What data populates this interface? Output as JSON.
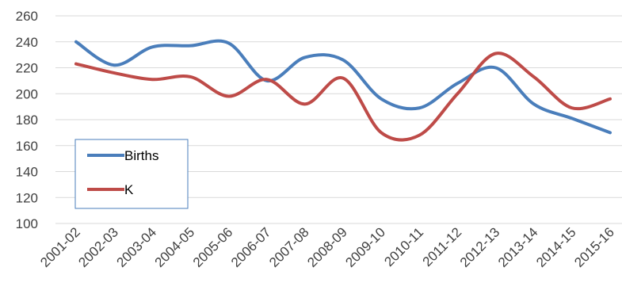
{
  "chart_data": {
    "type": "line",
    "title": "",
    "xlabel": "",
    "ylabel": "",
    "categories": [
      "2001-02",
      "2002-03",
      "2003-04",
      "2004-05",
      "2005-06",
      "2006-07",
      "2007-08",
      "2008-09",
      "2009-10",
      "2010-11",
      "2011-12",
      "2012-13",
      "2013-14",
      "2014-15",
      "2015-16"
    ],
    "ylim": [
      100,
      260
    ],
    "yticks": [
      100,
      120,
      140,
      160,
      180,
      200,
      220,
      240,
      260
    ],
    "grid": true,
    "smooth": true,
    "legend_position": "bottom-left",
    "series": [
      {
        "name": "Births",
        "color": "#4a7ebb",
        "values": [
          240,
          222,
          236,
          237,
          239,
          210,
          228,
          226,
          196,
          189,
          208,
          220,
          192,
          181,
          170
        ]
      },
      {
        "name": "K",
        "color": "#be4b48",
        "values": [
          223,
          216,
          211,
          213,
          198,
          211,
          192,
          212,
          170,
          168,
          200,
          231,
          213,
          189,
          196
        ]
      }
    ]
  }
}
